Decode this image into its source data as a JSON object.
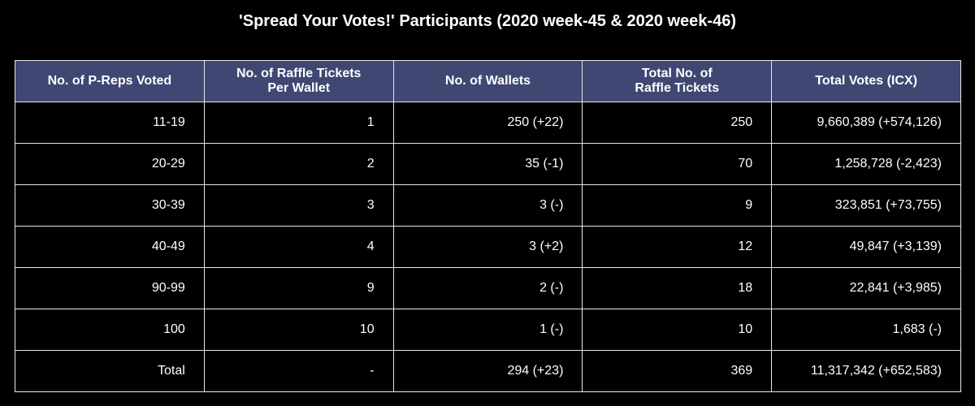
{
  "chart_data": {
    "type": "table",
    "title": "'Spread Your Votes!' Participants (2020 week-45 & 2020 week-46)",
    "columns": [
      "No. of P-Reps Voted",
      "No. of Raffle Tickets\nPer Wallet",
      "No. of Wallets",
      "Total No. of\nRaffle Tickets",
      "Total Votes (ICX)"
    ],
    "rows": [
      [
        "11-19",
        "1",
        "250 (+22)",
        "250",
        "9,660,389 (+574,126)"
      ],
      [
        "20-29",
        "2",
        "35 (-1)",
        "70",
        "1,258,728 (-2,423)"
      ],
      [
        "30-39",
        "3",
        "3 (-)",
        "9",
        "323,851 (+73,755)"
      ],
      [
        "40-49",
        "4",
        "3 (+2)",
        "12",
        "49,847 (+3,139)"
      ],
      [
        "90-99",
        "9",
        "2 (-)",
        "18",
        "22,841 (+3,985)"
      ],
      [
        "100",
        "10",
        "1 (-)",
        "10",
        "1,683 (-)"
      ],
      [
        "Total",
        "-",
        "294 (+23)",
        "369",
        "11,317,342 (+652,583)"
      ]
    ],
    "colors": {
      "header_background": "#3f4772",
      "cell_background": "#000000",
      "border": "#e8e8e8",
      "text": "#ffffff"
    }
  }
}
